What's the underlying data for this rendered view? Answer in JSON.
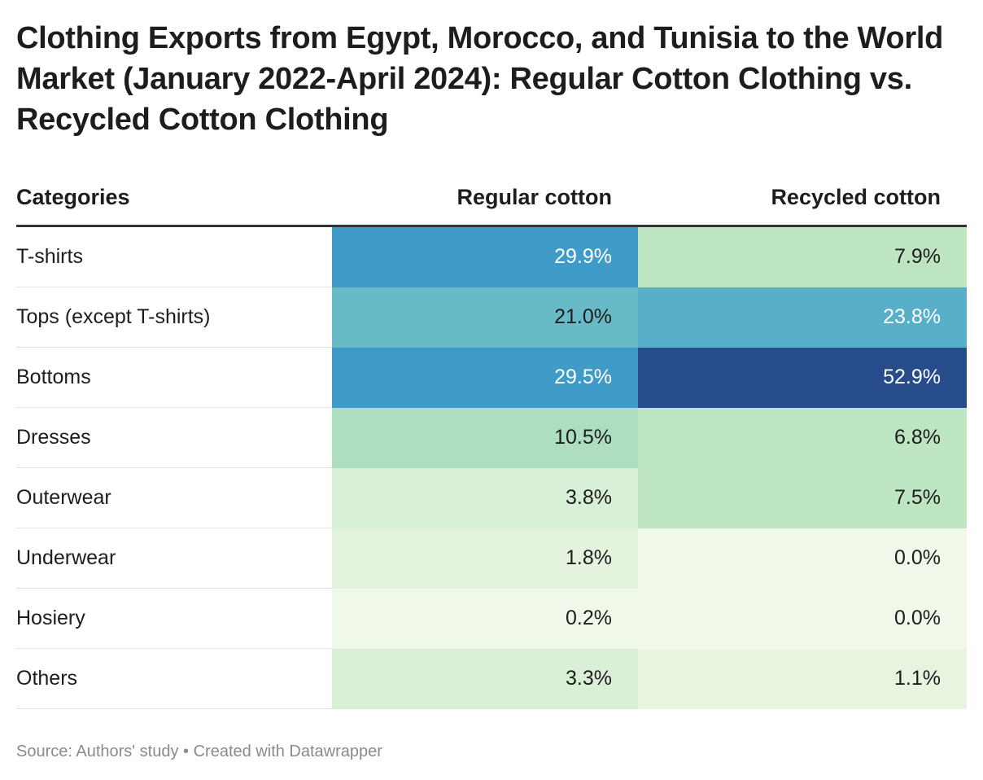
{
  "title": "Clothing Exports from Egypt, Morocco, and Tunisia to the World Market (January 2022-April 2024): Regular Cotton Clothing vs. Recycled Cotton Clothing",
  "table": {
    "header": [
      "Categories",
      "Regular cotton",
      "Recycled cotton"
    ],
    "rows": [
      [
        "T-shirts",
        "29.9%",
        "7.9%"
      ],
      [
        "Tops (except T-shirts)",
        "21.0%",
        "23.8%"
      ],
      [
        "Bottoms",
        "29.5%",
        "52.9%"
      ],
      [
        "Dresses",
        "10.5%",
        "6.8%"
      ],
      [
        "Outerwear",
        "3.8%",
        "7.5%"
      ],
      [
        "Underwear",
        "1.8%",
        "0.0%"
      ],
      [
        "Hosiery",
        "0.2%",
        "0.0%"
      ],
      [
        "Others",
        "3.3%",
        "1.1%"
      ]
    ],
    "colors": [
      [
        "#3f9bc8",
        "#bde5c1"
      ],
      [
        "#67bac6",
        "#57afc9"
      ],
      [
        "#3f9bc8",
        "#264c8c"
      ],
      [
        "#acdebf",
        "#bde5c1"
      ],
      [
        "#d7efd6",
        "#bde5c1"
      ],
      [
        "#e3f3de",
        "#f0f8ea"
      ],
      [
        "#eff8e9",
        "#f0f8ea"
      ],
      [
        "#d9f0d6",
        "#e6f4e0"
      ]
    ]
  },
  "source": "Source: Authors' study • Created with Datawrapper"
}
